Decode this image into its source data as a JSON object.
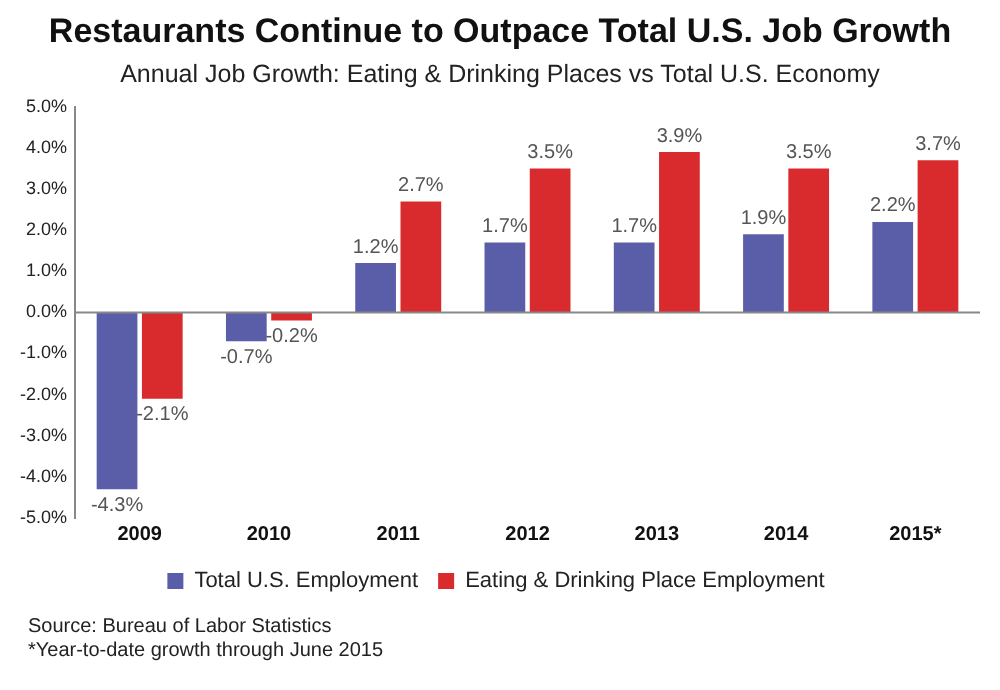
{
  "chart_data": {
    "type": "bar",
    "title": "Restaurants Continue to Outpace Total U.S. Job Growth",
    "subtitle": "Annual Job Growth: Eating & Drinking Places vs Total U.S. Economy",
    "categories": [
      "2009",
      "2010",
      "2011",
      "2012",
      "2013",
      "2014",
      "2015*"
    ],
    "series": [
      {
        "name": "Total U.S. Employment",
        "color": "#5a5ea8",
        "values": [
          -4.3,
          -0.7,
          1.2,
          1.7,
          1.7,
          1.9,
          2.2
        ],
        "value_labels": [
          "-4.3%",
          "-0.7%",
          "1.2%",
          "1.7%",
          "1.7%",
          "1.9%",
          "2.2%"
        ]
      },
      {
        "name": "Eating & Drinking Place Employment",
        "color": "#d92a2e",
        "values": [
          -2.1,
          -0.2,
          2.7,
          3.5,
          3.9,
          3.5,
          3.7
        ],
        "value_labels": [
          "-2.1%",
          "-0.2%",
          "2.7%",
          "3.5%",
          "3.9%",
          "3.5%",
          "3.7%"
        ]
      }
    ],
    "ylim": [
      -5,
      5
    ],
    "yticks": [
      {
        "value": 5,
        "label": "5.0%"
      },
      {
        "value": 4,
        "label": "4.0%"
      },
      {
        "value": 3,
        "label": "3.0%"
      },
      {
        "value": 2,
        "label": "2.0%"
      },
      {
        "value": 1,
        "label": "1.0%"
      },
      {
        "value": 0,
        "label": "0.0%"
      },
      {
        "value": -1,
        "label": "-1.0%"
      },
      {
        "value": -2,
        "label": "-2.0%"
      },
      {
        "value": -3,
        "label": "-3.0%"
      },
      {
        "value": -4,
        "label": "-4.0%"
      },
      {
        "value": -5,
        "label": "-5.0%"
      }
    ],
    "grid": false,
    "legend": "bottom",
    "ref_lines": [
      {
        "axis": "y",
        "value": 0,
        "color": "#888888"
      }
    ],
    "annotations": [
      "Source: Bureau of Labor Statistics",
      "*Year-to-date growth through June 2015"
    ]
  }
}
